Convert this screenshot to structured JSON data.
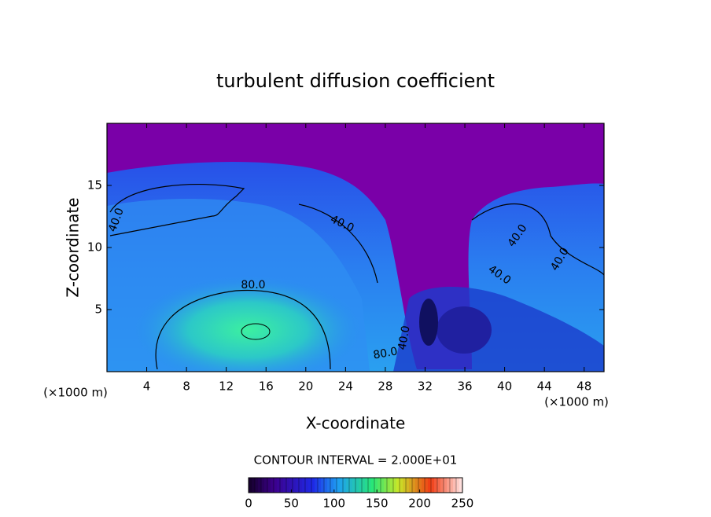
{
  "chart_data": {
    "type": "contour",
    "title": "turbulent diffusion coefficient",
    "x_label": "X-coordinate",
    "y_label": "Z-coordinate",
    "unit_labels": [
      "(×1000 m)",
      "(×1000 m)"
    ],
    "xlim": [
      0,
      50
    ],
    "ylim": [
      0,
      20
    ],
    "xticks": [
      4,
      8,
      12,
      16,
      20,
      24,
      28,
      32,
      36,
      40,
      44,
      48
    ],
    "yticks": [
      5,
      10,
      15
    ],
    "contour_labels": [
      {
        "value": 40,
        "label": "40.0"
      },
      {
        "value": 40,
        "label": "40.0"
      },
      {
        "value": 80,
        "label": "80.0"
      },
      {
        "value": 40,
        "label": "40.0"
      },
      {
        "value": 40,
        "label": "40.0"
      },
      {
        "value": 40,
        "label": "40.0"
      },
      {
        "value": 80,
        "label": "80.0"
      },
      {
        "value": 40,
        "label": "40.0"
      }
    ],
    "contour_interval": {
      "value": 20,
      "label": "CONTOUR INTERVAL = 2.000E+01"
    },
    "colorbar": {
      "lim": [
        0,
        250
      ],
      "ticks": [
        0,
        50,
        100,
        150,
        200,
        250
      ]
    }
  }
}
